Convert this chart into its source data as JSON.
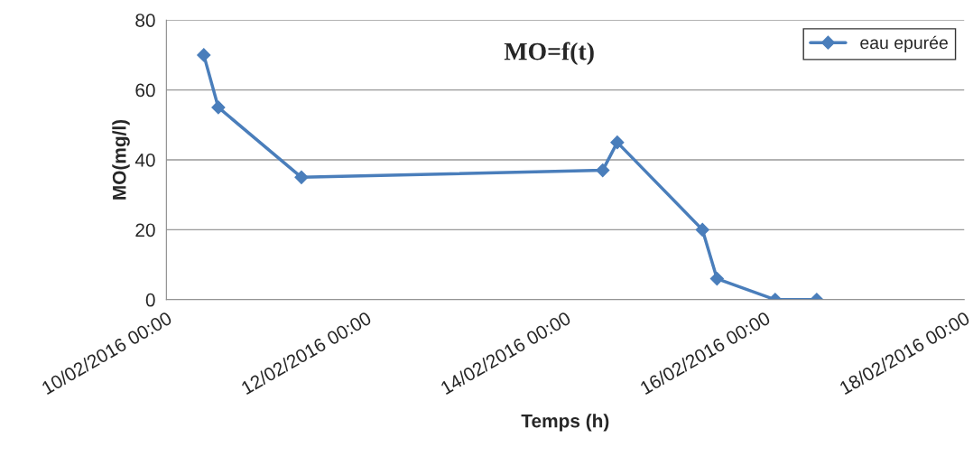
{
  "chart_data": {
    "type": "line",
    "title": "MO=f(t)",
    "xlabel": "Temps (h)",
    "ylabel": "MO(mg/l)",
    "x": [
      "2016-02-10T09:00",
      "2016-02-10T12:30",
      "2016-02-11T08:30",
      "2016-02-14T09:00",
      "2016-02-14T12:30",
      "2016-02-15T09:00",
      "2016-02-15T12:30",
      "2016-02-16T02:30",
      "2016-02-16T12:30"
    ],
    "series": [
      {
        "name": "eau epurée",
        "color": "#4a7ebb",
        "values": [
          70,
          55,
          35,
          37,
          45,
          20,
          6,
          0,
          0
        ]
      }
    ],
    "xlim": [
      "2016-02-10T00:00",
      "2016-02-18T00:00"
    ],
    "xticks": [
      {
        "value": "2016-02-10T00:00",
        "label": "10/02/2016 00:00"
      },
      {
        "value": "2016-02-12T00:00",
        "label": "12/02/2016 00:00"
      },
      {
        "value": "2016-02-14T00:00",
        "label": "14/02/2016 00:00"
      },
      {
        "value": "2016-02-16T00:00",
        "label": "16/02/2016 00:00"
      },
      {
        "value": "2016-02-18T00:00",
        "label": "18/02/2016 00:00"
      }
    ],
    "ylim": [
      0,
      80
    ],
    "yticks": [
      0,
      20,
      40,
      60,
      80
    ],
    "grid": "y",
    "legend": "top right",
    "marker": "diamond",
    "line_style": "solid"
  }
}
